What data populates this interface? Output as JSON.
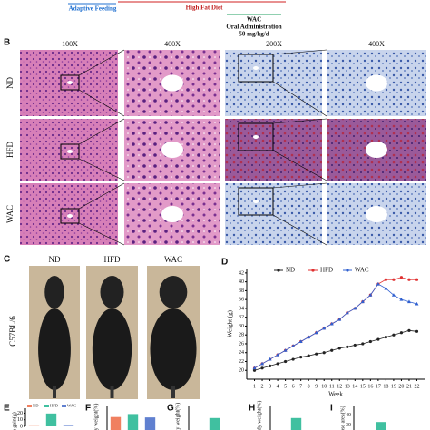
{
  "timeline": {
    "adaptive": "Adaptive Feeding",
    "hfd": "High Fat Diet",
    "wac": "WAC",
    "oral": "Oral Administration",
    "dose": "50 mg/kg/d"
  },
  "panel_b": {
    "label": "B",
    "columns": [
      "100X",
      "400X",
      "200X",
      "400X"
    ],
    "rows": [
      "ND",
      "HFD",
      "WAC"
    ]
  },
  "panel_c": {
    "label": "C",
    "columns": [
      "ND",
      "HFD",
      "WAC"
    ],
    "strain": "C57BL/6"
  },
  "chart_data": [
    {
      "panel": "D",
      "type": "line",
      "y_label": "Weight (g)",
      "x_label": "Week",
      "x": [
        1,
        2,
        3,
        4,
        5,
        6,
        7,
        8,
        9,
        10,
        11,
        12,
        13,
        14,
        15,
        16,
        17,
        18,
        19,
        20,
        21,
        22
      ],
      "xlim": [
        0,
        23
      ],
      "xticks": [
        1,
        2,
        3,
        4,
        5,
        6,
        7,
        8,
        9,
        10,
        11,
        12,
        13,
        14,
        15,
        16,
        17,
        18,
        19,
        20,
        21,
        22
      ],
      "ylim": [
        18,
        43
      ],
      "yticks": [
        20,
        22,
        24,
        26,
        28,
        30,
        32,
        34,
        36,
        38,
        40,
        42
      ],
      "series": [
        {
          "name": "ND",
          "color": "#222222",
          "marker": "circle",
          "values": [
            20,
            20.5,
            21,
            21.5,
            22,
            22.5,
            23,
            23.3,
            23.7,
            24,
            24.5,
            25,
            25.3,
            25.7,
            26,
            26.5,
            27,
            27.5,
            28,
            28.5,
            29,
            28.8
          ]
        },
        {
          "name": "HFD",
          "color": "#e03030",
          "marker": "circle",
          "values": [
            20.5,
            21.5,
            22.5,
            23.5,
            24.5,
            25.5,
            26.5,
            27.5,
            28.5,
            29.5,
            30.5,
            31.5,
            33,
            34,
            35.5,
            37,
            39.5,
            40.5,
            40.5,
            41,
            40.5,
            40.5
          ]
        },
        {
          "name": "WAC",
          "color": "#3060d0",
          "marker": "triangle",
          "values": [
            20.5,
            21.5,
            22.5,
            23.5,
            24.5,
            25.5,
            26.5,
            27.5,
            28.5,
            29.5,
            30.5,
            31.5,
            33,
            34,
            35.5,
            37,
            39.5,
            38.5,
            37,
            36,
            35.5,
            35
          ]
        }
      ]
    },
    {
      "panel": "E",
      "type": "bar",
      "y_label": "th gain(g)",
      "legend": true,
      "categories": [
        "ND",
        "HFD",
        "WAC"
      ],
      "colors": [
        "#f08060",
        "#40c0a0",
        "#6080d0"
      ],
      "values": [
        0.3,
        19.5,
        0.8
      ],
      "ylim": [
        0,
        22
      ],
      "yticks": [
        0,
        10,
        20
      ]
    },
    {
      "panel": "F",
      "type": "bar",
      "y_label": "body weight(%)",
      "colors": [
        "#f08060",
        "#40c0a0",
        "#6080d0"
      ],
      "values": [
        6.5,
        8,
        6.3
      ],
      "ylim": [
        0,
        10
      ]
    },
    {
      "panel": "G",
      "type": "bar",
      "y_label": "/body weight(%)",
      "colors": [
        "#40c0a0"
      ],
      "values": [
        12
      ],
      "ylim": [
        0,
        20
      ]
    },
    {
      "panel": "H",
      "type": "bar",
      "y_label": "at/body weight(%)",
      "colors": [
        "#40c0a0"
      ],
      "values": [
        6
      ],
      "ylim": [
        0,
        10
      ]
    },
    {
      "panel": "I",
      "type": "bar",
      "y_label": "ipose area(%)",
      "colors": [
        "#40c0a0"
      ],
      "values": [
        33
      ],
      "ylim": [
        25,
        45
      ],
      "yticks": [
        30,
        40
      ]
    }
  ]
}
